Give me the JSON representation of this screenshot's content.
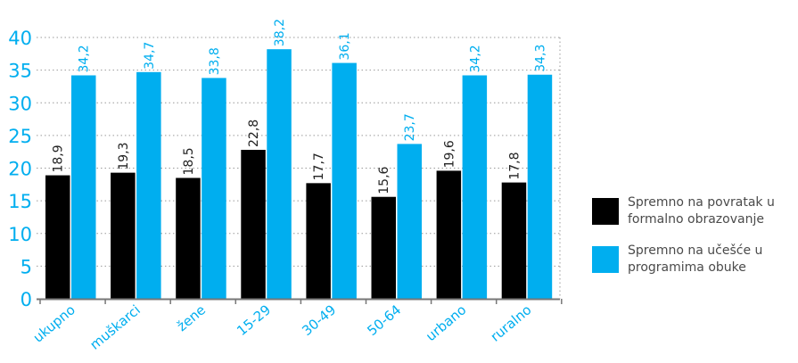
{
  "chart_data": {
    "type": "bar",
    "categories": [
      "ukupno",
      "muškarci",
      "žene",
      "15-29",
      "30-49",
      "50-64",
      "urbano",
      "ruralno"
    ],
    "series": [
      {
        "name": "Spremno na povratak u formalno obrazovanje",
        "color": "#000000",
        "values": [
          18.9,
          19.3,
          18.5,
          22.8,
          17.7,
          15.6,
          19.6,
          17.8
        ],
        "labels": [
          "18,9",
          "19,3",
          "18,5",
          "22,8",
          "17,7",
          "15,6",
          "19,6",
          "17,8"
        ]
      },
      {
        "name": "Spremno na učešće u programima obuke",
        "color": "#00aeef",
        "values": [
          34.2,
          34.7,
          33.8,
          38.2,
          36.1,
          23.7,
          34.2,
          34.3
        ],
        "labels": [
          "34,2",
          "34,7",
          "33,8",
          "38,2",
          "36,1",
          "23,7",
          "34,2",
          "34,3"
        ]
      }
    ],
    "ylim": [
      0,
      40
    ],
    "yticks": [
      "0",
      "5",
      "10",
      "15",
      "20",
      "25",
      "30",
      "35",
      "40"
    ],
    "grid": true,
    "legend_position": "right"
  },
  "colors": {
    "axis_text": "#00aeef",
    "grid": "#9a9a9a",
    "legend_text": "#4a4a4a"
  }
}
